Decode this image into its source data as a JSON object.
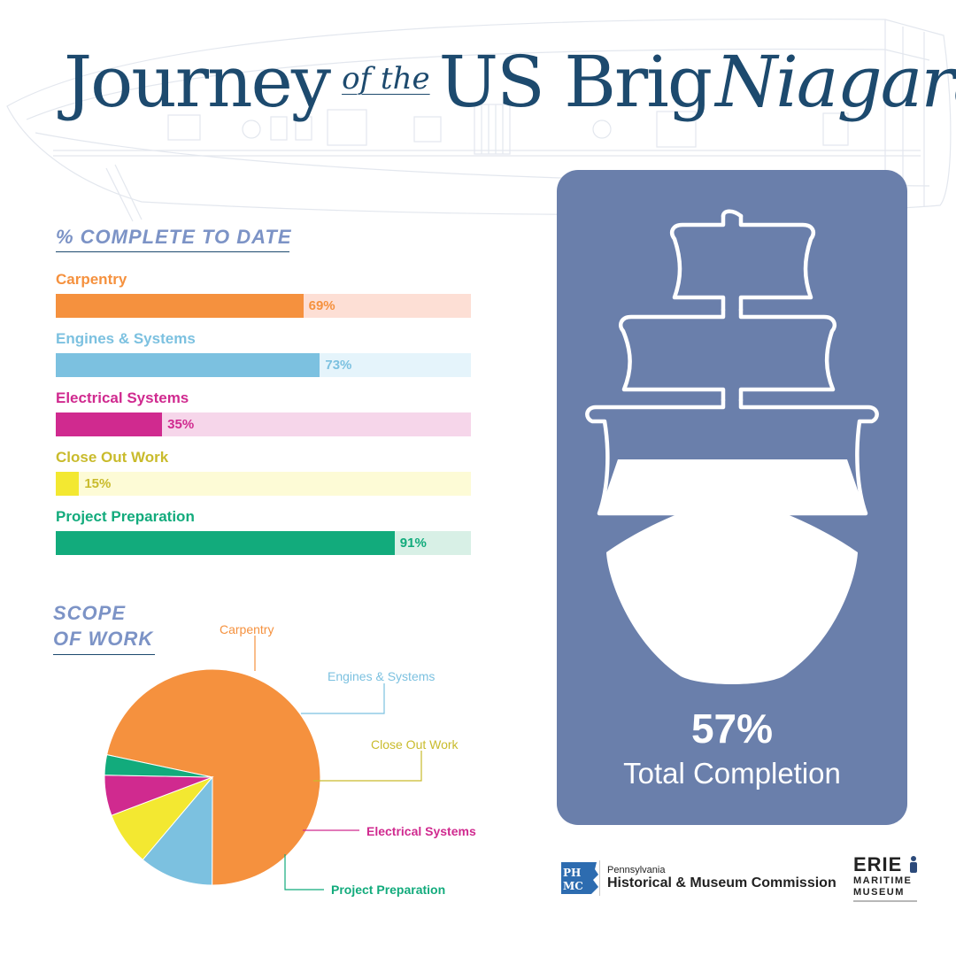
{
  "title": {
    "part1": "Journey",
    "part2": "of the",
    "part3": "US Brig",
    "part4": "Niagara"
  },
  "colors": {
    "title": "#1d4a6e",
    "heading": "#7c93c6",
    "card": "#6a7fab",
    "carpentry": "#f5913e",
    "engines": "#7cc1e0",
    "electrical": "#d02a8f",
    "closeout": "#f3e831",
    "preparation": "#12ab7c"
  },
  "total": {
    "value": "57%",
    "label": "Total Completion",
    "icon": "sailing-ship-icon"
  },
  "logos": {
    "phmc_mark": "PHMC",
    "phmc_state": "Pennsylvania",
    "phmc_name": "Historical & Museum Commission",
    "erie_line1": "ERIE",
    "erie_line2": "MARITIME",
    "erie_line3": "MUSEUM"
  },
  "chart_data": [
    {
      "type": "bar",
      "orientation": "horizontal",
      "title": "% COMPLETE TO DATE",
      "categories": [
        "Carpentry",
        "Engines & Systems",
        "Electrical Systems",
        "Close Out Work",
        "Project Preparation"
      ],
      "values": [
        69,
        73,
        35,
        15,
        91
      ],
      "value_labels": [
        "69%",
        "73%",
        "35%",
        "15%",
        "91%"
      ],
      "xlim": [
        0,
        100
      ],
      "track_colors": [
        "#fddfd5",
        "#e5f4fb",
        "#f6d6ea",
        "#fdfbd6",
        "#d8f0e6"
      ]
    },
    {
      "type": "pie",
      "title": "SCOPE OF WORK",
      "labels": [
        "Carpentry",
        "Engines & Systems",
        "Close Out Work",
        "Electrical Systems",
        "Project Preparation"
      ],
      "values": [
        71,
        11,
        8,
        6,
        3
      ],
      "legend": "callout labels"
    }
  ]
}
